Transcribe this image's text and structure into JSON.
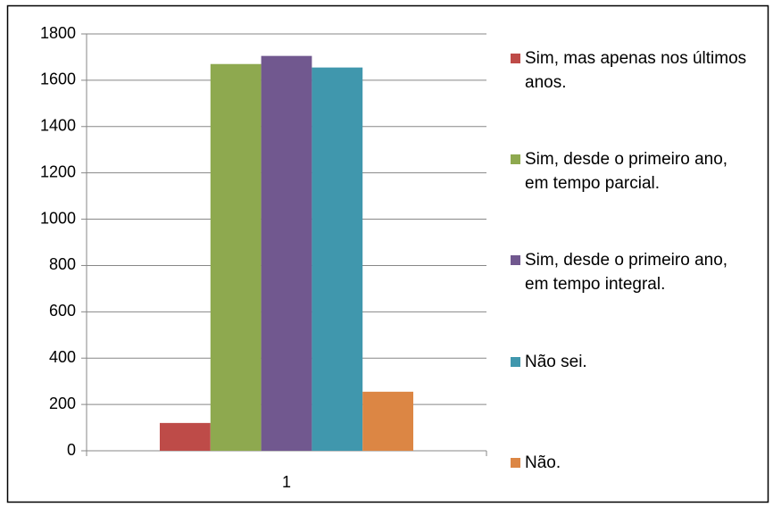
{
  "chart_data": {
    "type": "bar",
    "categories": [
      "1"
    ],
    "series": [
      {
        "name": "Sim, mas apenas nos últimos anos.",
        "color": "#be4b48",
        "values": [
          120
        ]
      },
      {
        "name": "Sim, desde o primeiro ano, em tempo parcial.",
        "color": "#8ea94f",
        "values": [
          1670
        ]
      },
      {
        "name": "Sim, desde o primeiro ano, em tempo integral.",
        "color": "#71588f",
        "values": [
          1705
        ]
      },
      {
        "name": "Não sei.",
        "color": "#4097ad",
        "values": [
          1655
        ]
      },
      {
        "name": "Não.",
        "color": "#dc8644",
        "values": [
          255
        ]
      }
    ],
    "ylim": [
      0,
      1800
    ],
    "yticks": [
      0,
      200,
      400,
      600,
      800,
      1000,
      1200,
      1400,
      1600,
      1800
    ],
    "grid": true,
    "legend": "right"
  }
}
